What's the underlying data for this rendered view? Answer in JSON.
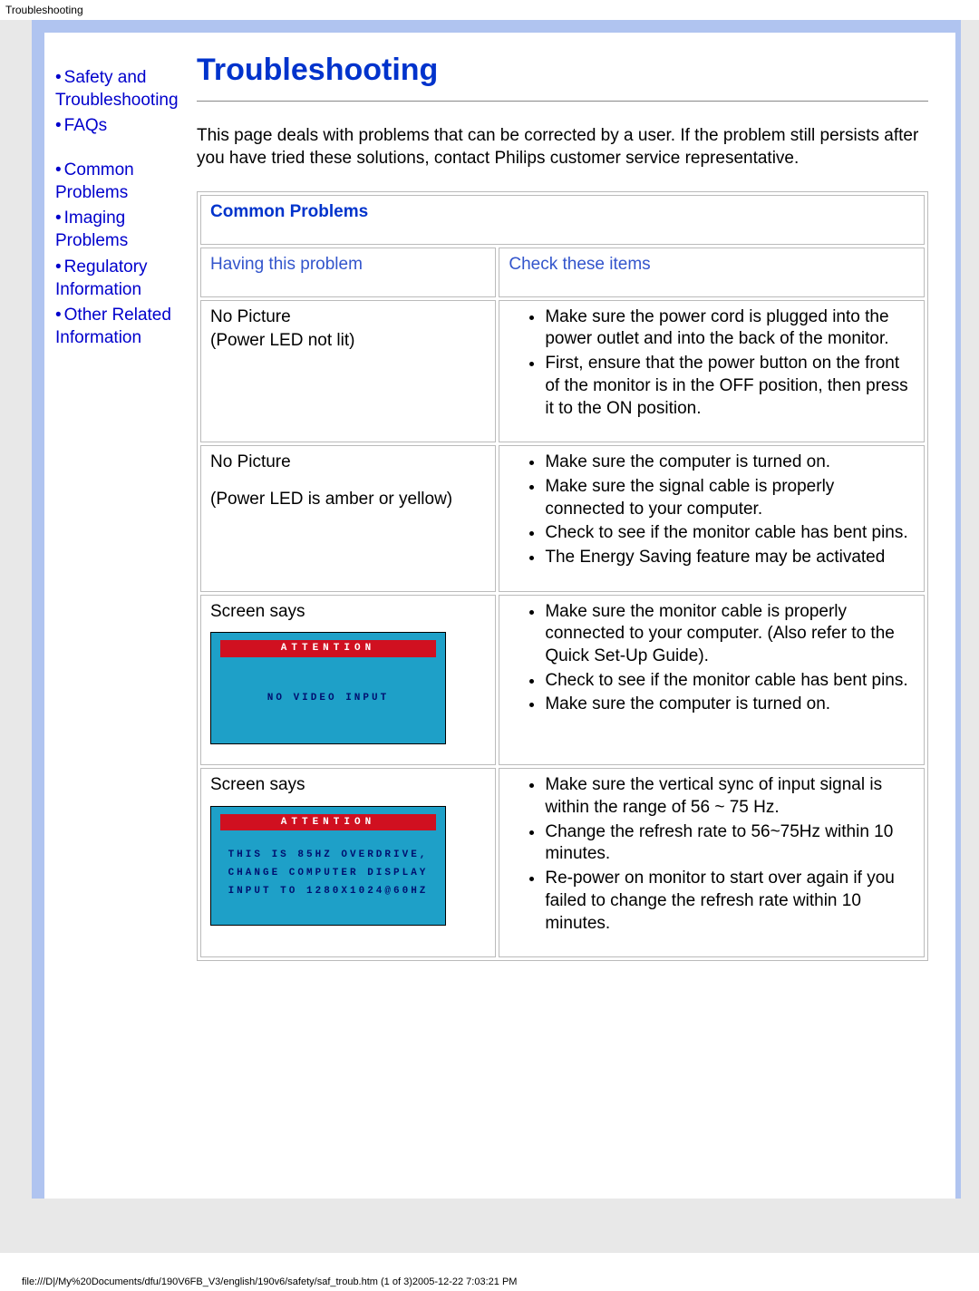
{
  "header_tab": "Troubleshooting",
  "page_title": "Troubleshooting",
  "intro": "This page deals with problems that can be corrected by a user. If the problem still persists after you have tried these solutions, contact Philips customer service representative.",
  "sidebar": {
    "items": [
      {
        "label": "Safety and Troubleshooting"
      },
      {
        "label": "FAQs"
      },
      {
        "label": "Common Problems"
      },
      {
        "label": "Imaging Problems"
      },
      {
        "label": "Regulatory Information"
      },
      {
        "label": "Other Related Information"
      }
    ]
  },
  "table": {
    "section_heading": "Common Problems",
    "col1": "Having this problem",
    "col2": "Check these items",
    "rows": [
      {
        "problem_lines": [
          "No Picture",
          "(Power LED not lit)"
        ],
        "checks": [
          "Make sure the power cord is plugged into the power outlet and into the back of the monitor.",
          "First, ensure that the power button on the front of the monitor is in the OFF position, then press it to the ON position."
        ]
      },
      {
        "problem_lines": [
          "No Picture",
          "",
          "(Power LED is amber or yellow)"
        ],
        "checks": [
          "Make sure the computer is turned on.",
          "Make sure the signal cable is properly connected to your computer.",
          "Check to see if the monitor cable has bent pins.",
          "The Energy Saving feature may be activated"
        ]
      },
      {
        "problem_lines": [
          "Screen says"
        ],
        "osd": {
          "attn": "ATTENTION",
          "lines": [
            "NO VIDEO INPUT"
          ],
          "tall": true
        },
        "checks": [
          "Make sure the monitor cable is properly connected to your computer. (Also refer to the Quick Set-Up Guide).",
          "Check to see if the monitor cable has bent pins.",
          "Make sure the computer is turned on."
        ]
      },
      {
        "problem_lines": [
          "Screen says"
        ],
        "osd": {
          "attn": "ATTENTION",
          "lines": [
            "THIS IS 85HZ OVERDRIVE,",
            "CHANGE COMPUTER DISPLAY",
            "INPUT TO 1280X1024@60HZ"
          ],
          "tall": false
        },
        "checks": [
          "Make sure the vertical sync of input signal is within the range of 56 ~ 75 Hz.",
          "Change the refresh rate to 56~75Hz within 10 minutes.",
          "Re-power on monitor to start over again if you failed to change the refresh rate within 10 minutes."
        ]
      }
    ]
  },
  "footer_path": "file:///D|/My%20Documents/dfu/190V6FB_V3/english/190v6/safety/saf_troub.htm (1 of 3)2005-12-22 7:03:21 PM",
  "colors": {
    "frame_border": "#b0c4f0",
    "title": "#0033cc",
    "link": "#0000cc",
    "osd_bg": "#1ea0c8",
    "osd_attn_bg": "#d01020",
    "osd_text": "#001070",
    "outer_bg": "#e8e8e8",
    "cell_border": "#bbbbbb"
  }
}
